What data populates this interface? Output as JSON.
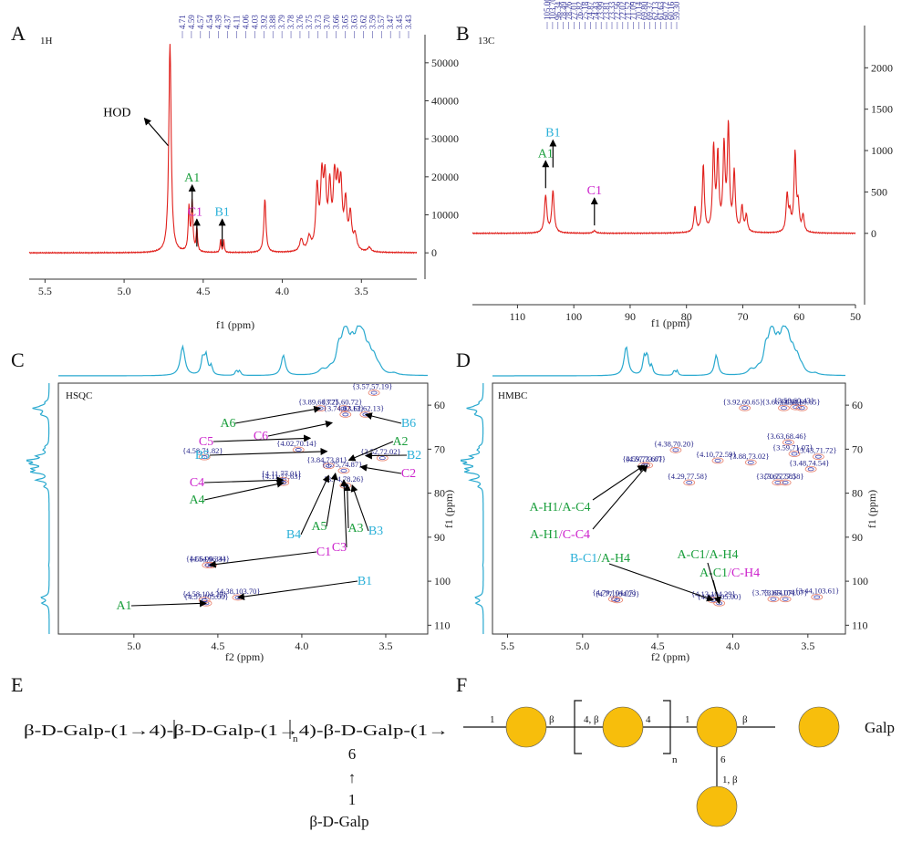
{
  "panels": {
    "A": {
      "letter": "A",
      "nucleus": "1H",
      "xlabel": "f1 (ppm)"
    },
    "B": {
      "letter": "B",
      "nucleus": "13C",
      "xlabel": "f1 (ppm)"
    },
    "C": {
      "letter": "C",
      "title": "HSQC",
      "xlabel": "f2 (ppm)",
      "ylabel": "f1 (ppm)"
    },
    "D": {
      "letter": "D",
      "title": "HMBC",
      "xlabel": "f2 (ppm)",
      "ylabel": "f1 (ppm)"
    },
    "E": {
      "letter": "E"
    },
    "F": {
      "letter": "F"
    }
  },
  "colors": {
    "spectrum": "#e0201c",
    "projection": "#29a9cf",
    "label_blue": "#3333aa",
    "A": "#1a9e3c",
    "B": "#2ab0d8",
    "C": "#cc22cc",
    "galactose": "#f7be0c"
  },
  "chart_data": [
    {
      "type": "line",
      "panel": "A",
      "xlabel": "f1 (ppm)",
      "xlim": [
        5.6,
        3.15
      ],
      "ylim": [
        -5000,
        55000
      ],
      "xticks": [
        "5.5",
        "5.0",
        "4.5",
        "4.0",
        "3.5"
      ],
      "yticks": [
        "0",
        "10000",
        "20000",
        "30000",
        "40000",
        "50000"
      ],
      "peaks": [
        {
          "x": 4.71,
          "h": 55000,
          "w": 0.009
        },
        {
          "x": 4.59,
          "h": 11500,
          "w": 0.006
        },
        {
          "x": 4.57,
          "h": 13000,
          "w": 0.006
        },
        {
          "x": 4.54,
          "h": 6200,
          "w": 0.005
        },
        {
          "x": 4.39,
          "h": 3600,
          "w": 0.004
        },
        {
          "x": 4.37,
          "h": 3300,
          "w": 0.004
        },
        {
          "x": 4.11,
          "h": 14000,
          "w": 0.008
        },
        {
          "x": 3.88,
          "h": 3200,
          "w": 0.012
        },
        {
          "x": 3.83,
          "h": 3500,
          "w": 0.012
        },
        {
          "x": 3.78,
          "h": 16000,
          "w": 0.01
        },
        {
          "x": 3.75,
          "h": 17500,
          "w": 0.01
        },
        {
          "x": 3.73,
          "h": 16500,
          "w": 0.01
        },
        {
          "x": 3.7,
          "h": 15500,
          "w": 0.01
        },
        {
          "x": 3.67,
          "h": 17000,
          "w": 0.01
        },
        {
          "x": 3.65,
          "h": 14000,
          "w": 0.01
        },
        {
          "x": 3.63,
          "h": 15500,
          "w": 0.01
        },
        {
          "x": 3.6,
          "h": 12000,
          "w": 0.01
        },
        {
          "x": 3.57,
          "h": 9000,
          "w": 0.01
        },
        {
          "x": 3.54,
          "h": 4000,
          "w": 0.012
        },
        {
          "x": 3.45,
          "h": 1200,
          "w": 0.012
        }
      ],
      "peak_list": [
        "4.71",
        "4.59",
        "4.57",
        "4.54",
        "4.39",
        "4.37",
        "4.11",
        "4.06",
        "4.03",
        "3.92",
        "3.88",
        "3.79",
        "3.78",
        "3.76",
        "3.75",
        "3.73",
        "3.70",
        "3.66",
        "3.65",
        "3.63",
        "3.62",
        "3.59",
        "3.57",
        "3.47",
        "3.45",
        "3.43"
      ],
      "annotations": [
        {
          "text": "HOD",
          "x": 4.71,
          "y": 33000
        },
        {
          "text": "A1",
          "x": 4.57,
          "y": 14000,
          "group": "A"
        },
        {
          "text": "C1",
          "x": 4.54,
          "y": 5000,
          "group": "C"
        },
        {
          "text": "B1",
          "x": 4.38,
          "y": 5000,
          "group": "B"
        }
      ]
    },
    {
      "type": "line",
      "panel": "B",
      "xlabel": "f1 (ppm)",
      "xlim": [
        118,
        50
      ],
      "ylim": [
        -300,
        2400
      ],
      "xticks": [
        "110",
        "100",
        "90",
        "80",
        "70",
        "60",
        "50"
      ],
      "yticks": [
        "0",
        "500",
        "1000",
        "1500",
        "2000"
      ],
      "peaks": [
        {
          "x": 105.0,
          "h": 450,
          "w": 0.25
        },
        {
          "x": 103.7,
          "h": 500,
          "w": 0.25
        },
        {
          "x": 96.34,
          "h": 30,
          "w": 0.3
        },
        {
          "x": 78.49,
          "h": 300,
          "w": 0.22
        },
        {
          "x": 77.01,
          "h": 800,
          "w": 0.22
        },
        {
          "x": 75.18,
          "h": 1000,
          "w": 0.22
        },
        {
          "x": 74.43,
          "h": 900,
          "w": 0.22
        },
        {
          "x": 73.33,
          "h": 1000,
          "w": 0.22
        },
        {
          "x": 72.56,
          "h": 1250,
          "w": 0.22
        },
        {
          "x": 71.52,
          "h": 700,
          "w": 0.22
        },
        {
          "x": 70.14,
          "h": 300,
          "w": 0.22
        },
        {
          "x": 69.37,
          "h": 200,
          "w": 0.22
        },
        {
          "x": 62.13,
          "h": 450,
          "w": 0.22
        },
        {
          "x": 61.63,
          "h": 200,
          "w": 0.22
        },
        {
          "x": 60.72,
          "h": 950,
          "w": 0.22
        },
        {
          "x": 60.16,
          "h": 300,
          "w": 0.22
        },
        {
          "x": 59.3,
          "h": 200,
          "w": 0.22
        }
      ],
      "peak_list": [
        "105.00",
        "103.70",
        "96.34",
        "78.49",
        "78.26",
        "77.01",
        "76.82",
        "75.18",
        "74.87",
        "74.43",
        "73.99",
        "73.81",
        "73.33",
        "72.56",
        "72.02",
        "71.52",
        "71.09",
        "70.14",
        "69.80",
        "69.37",
        "62.13",
        "61.63",
        "60.72",
        "60.16",
        "59.30"
      ],
      "annotations": [
        {
          "text": "A1",
          "x": 105.0,
          "y": 700,
          "group": "A"
        },
        {
          "text": "B1",
          "x": 103.7,
          "y": 950,
          "group": "B"
        },
        {
          "text": "C1",
          "x": 96.34,
          "y": 250,
          "group": "C"
        }
      ]
    },
    {
      "type": "scatter",
      "panel": "C",
      "title": "HSQC",
      "xlabel": "f2 (ppm)",
      "ylabel": "f1 (ppm)",
      "xlim": [
        5.45,
        3.25
      ],
      "ylim": [
        55,
        112
      ],
      "xticks": [
        "5.0",
        "4.5",
        "4.0",
        "3.5"
      ],
      "yticks": [
        "60",
        "70",
        "80",
        "90",
        "100",
        "110"
      ],
      "points": [
        {
          "label": "3.57,57.19",
          "x": 3.57,
          "y": 57.19
        },
        {
          "label": "3.89,60.72",
          "x": 3.89,
          "y": 60.72
        },
        {
          "label": "3.62,62.13",
          "x": 3.62,
          "y": 62.13
        },
        {
          "label": "3.75,60.72",
          "x": 3.75,
          "y": 60.72
        },
        {
          "label": "3.74,62.13",
          "x": 3.74,
          "y": 62.13
        },
        {
          "label": "4.58,71.82",
          "x": 4.58,
          "y": 71.82
        },
        {
          "label": "4.02,70.14",
          "x": 4.02,
          "y": 70.14
        },
        {
          "label": "3.52,72.02",
          "x": 3.52,
          "y": 72.02
        },
        {
          "label": "3.84,73.81",
          "x": 3.84,
          "y": 73.81
        },
        {
          "label": "3.74,78.26",
          "x": 3.74,
          "y": 78.26
        },
        {
          "label": "4.11,77.01",
          "x": 4.11,
          "y": 77.01
        },
        {
          "label": "3.75,74.87",
          "x": 3.75,
          "y": 74.87
        },
        {
          "label": "4.11,77.63",
          "x": 4.11,
          "y": 77.63
        },
        {
          "label": "4.54,96.34",
          "x": 4.54,
          "y": 96.34
        },
        {
          "label": "4.56,96.34",
          "x": 4.56,
          "y": 96.34
        },
        {
          "label": "4.57,105.00",
          "x": 4.57,
          "y": 105.0
        },
        {
          "label": "4.58,104.29",
          "x": 4.58,
          "y": 104.29
        },
        {
          "label": "4.38,103.70",
          "x": 4.38,
          "y": 103.7
        }
      ],
      "assignments": [
        "A6",
        "C6",
        "C5",
        "B5",
        "C4",
        "A4",
        "B4",
        "A5",
        "C3",
        "A3",
        "B3",
        "A2",
        "B2",
        "C2",
        "B6",
        "C1",
        "B1",
        "A1"
      ]
    },
    {
      "type": "scatter",
      "panel": "D",
      "title": "HMBC",
      "xlabel": "f2 (ppm)",
      "ylabel": "f1 (ppm)",
      "xlim": [
        5.6,
        3.25
      ],
      "ylim": [
        55,
        112
      ],
      "xticks": [
        "5.5",
        "5.0",
        "4.5",
        "4.0",
        "3.5"
      ],
      "yticks": [
        "60",
        "70",
        "80",
        "90",
        "100",
        "110"
      ],
      "points": [
        {
          "label": "3.92,60.65",
          "x": 3.92,
          "y": 60.65
        },
        {
          "label": "3.58,60.43",
          "x": 3.58,
          "y": 60.43
        },
        {
          "label": "3.54,60.65",
          "x": 3.54,
          "y": 60.65
        },
        {
          "label": "3.66,60.65",
          "x": 3.66,
          "y": 60.65
        },
        {
          "label": "4.38,70.20",
          "x": 4.38,
          "y": 70.2
        },
        {
          "label": "3.63,68.46",
          "x": 3.63,
          "y": 68.46
        },
        {
          "label": "3.59,71.07",
          "x": 3.59,
          "y": 71.07
        },
        {
          "label": "4.57,73.67",
          "x": 4.57,
          "y": 73.67
        },
        {
          "label": "3.88,73.02",
          "x": 3.88,
          "y": 73.02
        },
        {
          "label": "4.59,73.67",
          "x": 4.59,
          "y": 73.67
        },
        {
          "label": "4.10,72.59",
          "x": 4.1,
          "y": 72.59
        },
        {
          "label": "3.43,71.72",
          "x": 3.43,
          "y": 71.72
        },
        {
          "label": "3.48,74.54",
          "x": 3.48,
          "y": 74.54
        },
        {
          "label": "4.29,77.58",
          "x": 4.29,
          "y": 77.58
        },
        {
          "label": "3.70,77.58",
          "x": 3.7,
          "y": 77.58
        },
        {
          "label": "3.65,77.58",
          "x": 3.65,
          "y": 77.58
        },
        {
          "label": "4.79,104.07",
          "x": 4.79,
          "y": 104.07
        },
        {
          "label": "4.77,104.29",
          "x": 4.77,
          "y": 104.29
        },
        {
          "label": "4.09,105.00",
          "x": 4.09,
          "y": 105.0
        },
        {
          "label": "4.13,104.29",
          "x": 4.13,
          "y": 104.29
        },
        {
          "label": "3.73,104.07",
          "x": 3.73,
          "y": 104.07
        },
        {
          "label": "3.44,103.61",
          "x": 3.44,
          "y": 103.61
        },
        {
          "label": "3.65,104.07",
          "x": 3.65,
          "y": 104.07
        }
      ],
      "correlations": [
        "A-H1/A-C4",
        "A-H1/C-C4",
        "B-C1/A-H4",
        "A-C1/A-H4",
        "A-C1/C-H4"
      ]
    }
  ],
  "structureE": {
    "line1": "β-D-Galp-(1→4)-β-D-Galp-(1→4)-β-D-Galp-(1→",
    "repeat": "n",
    "branch_pos": "6",
    "arrow": "↑",
    "branch_link": "1",
    "branch_residue": "β-D-Galp"
  },
  "structureF": {
    "labels": [
      "1",
      "β",
      "4, β",
      "4",
      "n",
      "1",
      "β",
      "6",
      "1, β"
    ],
    "legend": "Galp"
  }
}
